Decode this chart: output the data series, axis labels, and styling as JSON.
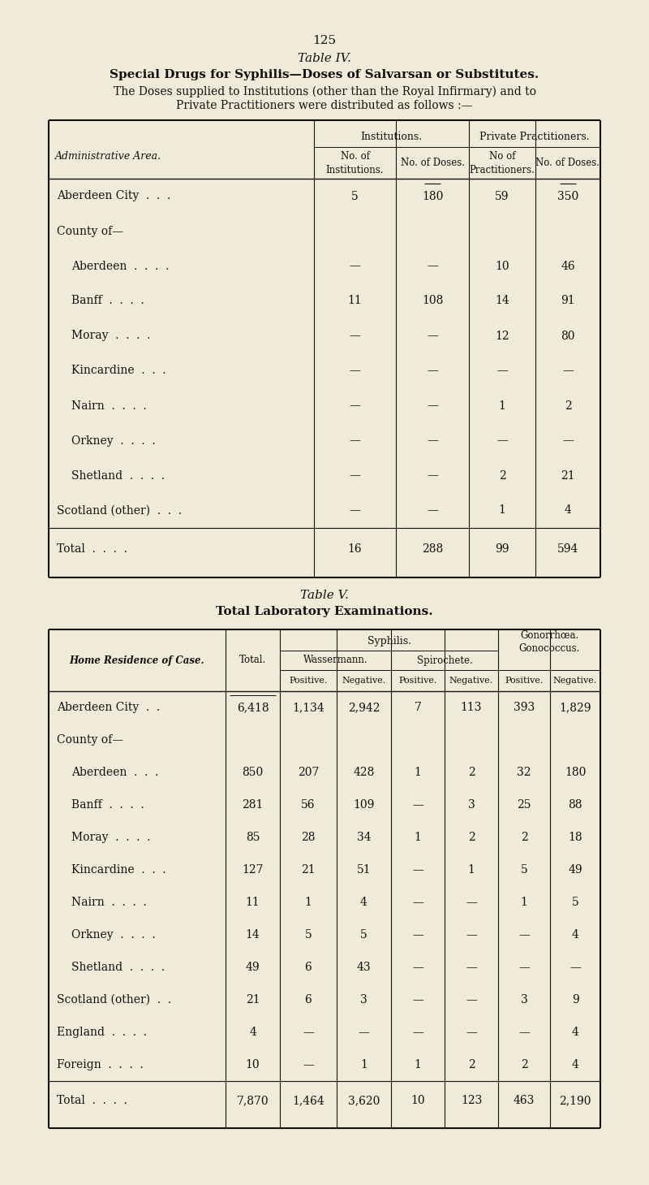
{
  "page_number": "125",
  "table4": {
    "title_line1": "Table IV.",
    "title_line2": "Special Drugs for Syphilis—Doses of Salvarsan or Substitutes.",
    "subtitle1": "The Doses supplied to Institutions (other than the Royal Infirmary) and to",
    "subtitle2": "Private Practitioners were distributed as follows :—",
    "row_header": "Administrative Area.",
    "inst_header": "Institutions.",
    "priv_header": "Private Practitioners.",
    "no_inst_hdr": "No. of\nInstitutions.",
    "no_doses_inst_hdr": "No. of Doses.",
    "no_pract_hdr": "No of\nPractitioners.",
    "no_doses_priv_hdr": "No. of Doses.",
    "rows": [
      {
        "label": "Aberdeen City  .  .  .",
        "ind": 0,
        "no_inst": "5",
        "doses_inst": "180",
        "no_pract": "59",
        "doses_priv": "350"
      },
      {
        "label": "County of—",
        "ind": 0,
        "no_inst": "",
        "doses_inst": "",
        "no_pract": "",
        "doses_priv": ""
      },
      {
        "label": "Aberdeen  .  .  .  .",
        "ind": 1,
        "no_inst": "—",
        "doses_inst": "—",
        "no_pract": "10",
        "doses_priv": "46"
      },
      {
        "label": "Banff  .  .  .  .",
        "ind": 1,
        "no_inst": "11",
        "doses_inst": "108",
        "no_pract": "14",
        "doses_priv": "91"
      },
      {
        "label": "Moray  .  .  .  .",
        "ind": 1,
        "no_inst": "—",
        "doses_inst": "—",
        "no_pract": "12",
        "doses_priv": "80"
      },
      {
        "label": "Kincardine  .  .  .",
        "ind": 1,
        "no_inst": "—",
        "doses_inst": "—",
        "no_pract": "—",
        "doses_priv": "—"
      },
      {
        "label": "Nairn  .  .  .  .",
        "ind": 1,
        "no_inst": "—",
        "doses_inst": "—",
        "no_pract": "1",
        "doses_priv": "2"
      },
      {
        "label": "Orkney  .  .  .  .",
        "ind": 1,
        "no_inst": "—",
        "doses_inst": "—",
        "no_pract": "—",
        "doses_priv": "—"
      },
      {
        "label": "Shetland  .  .  .  .",
        "ind": 1,
        "no_inst": "—",
        "doses_inst": "—",
        "no_pract": "2",
        "doses_priv": "21"
      },
      {
        "label": "Scotland (other)  .  .  .",
        "ind": 0,
        "no_inst": "—",
        "doses_inst": "—",
        "no_pract": "1",
        "doses_priv": "4"
      },
      {
        "label": "Total  .  .  .  .",
        "ind": 0,
        "no_inst": "16",
        "doses_inst": "288",
        "no_pract": "99",
        "doses_priv": "594",
        "is_total": true
      }
    ]
  },
  "table5": {
    "title_line1": "Table V.",
    "title_line2": "Total Laboratory Examinations.",
    "home_res_hdr": "Home Residence of Case.",
    "total_hdr": "Total.",
    "syphilis_hdr": "Syphilis.",
    "wass_hdr": "Wassermann.",
    "spiro_hdr": "Spirochete.",
    "gono_hdr": "Gonorrhœa.\nGonococcus.",
    "positive_hdr": "Positive.",
    "negative_hdr": "Negative.",
    "rows": [
      {
        "label": "Aberdeen City  .  .",
        "ind": 0,
        "total": "6,418",
        "wpos": "1,134",
        "wneg": "2,942",
        "spos": "7",
        "sneg": "113",
        "gpos": "393",
        "gneg": "1,829"
      },
      {
        "label": "County of—",
        "ind": 0,
        "total": "",
        "wpos": "",
        "wneg": "",
        "spos": "",
        "sneg": "",
        "gpos": "",
        "gneg": ""
      },
      {
        "label": "Aberdeen  .  .  .",
        "ind": 1,
        "total": "850",
        "wpos": "207",
        "wneg": "428",
        "spos": "1",
        "sneg": "2",
        "gpos": "32",
        "gneg": "180"
      },
      {
        "label": "Banff  .  .  .  .",
        "ind": 1,
        "total": "281",
        "wpos": "56",
        "wneg": "109",
        "spos": "—",
        "sneg": "3",
        "gpos": "25",
        "gneg": "88"
      },
      {
        "label": "Moray  .  .  .  .",
        "ind": 1,
        "total": "85",
        "wpos": "28",
        "wneg": "34",
        "spos": "1",
        "sneg": "2",
        "gpos": "2",
        "gneg": "18"
      },
      {
        "label": "Kincardine  .  .  .",
        "ind": 1,
        "total": "127",
        "wpos": "21",
        "wneg": "51",
        "spos": "—",
        "sneg": "1",
        "gpos": "5",
        "gneg": "49"
      },
      {
        "label": "Nairn  .  .  .  .",
        "ind": 1,
        "total": "11",
        "wpos": "1",
        "wneg": "4",
        "spos": "—",
        "sneg": "—",
        "gpos": "1",
        "gneg": "5"
      },
      {
        "label": "Orkney  .  .  .  .",
        "ind": 1,
        "total": "14",
        "wpos": "5",
        "wneg": "5",
        "spos": "—",
        "sneg": "—",
        "gpos": "—",
        "gneg": "4"
      },
      {
        "label": "Shetland  .  .  .  .",
        "ind": 1,
        "total": "49",
        "wpos": "6",
        "wneg": "43",
        "spos": "—",
        "sneg": "—",
        "gpos": "—",
        "gneg": "—"
      },
      {
        "label": "Scotland (other)  .  .",
        "ind": 0,
        "total": "21",
        "wpos": "6",
        "wneg": "3",
        "spos": "—",
        "sneg": "—",
        "gpos": "3",
        "gneg": "9"
      },
      {
        "label": "England  .  .  .  .",
        "ind": 0,
        "total": "4",
        "wpos": "—",
        "wneg": "—",
        "spos": "—",
        "sneg": "—",
        "gpos": "—",
        "gneg": "4"
      },
      {
        "label": "Foreign  .  .  .  .",
        "ind": 0,
        "total": "10",
        "wpos": "—",
        "wneg": "1",
        "spos": "1",
        "sneg": "2",
        "gpos": "2",
        "gneg": "4"
      },
      {
        "label": "Total  .  .  .  .",
        "ind": 0,
        "total": "7,870",
        "wpos": "1,464",
        "wneg": "3,620",
        "spos": "10",
        "sneg": "123",
        "gpos": "463",
        "gneg": "2,190",
        "is_total": true
      }
    ]
  },
  "bg_color": "#f0ead8",
  "text_color": "#111111",
  "line_color": "#111111"
}
